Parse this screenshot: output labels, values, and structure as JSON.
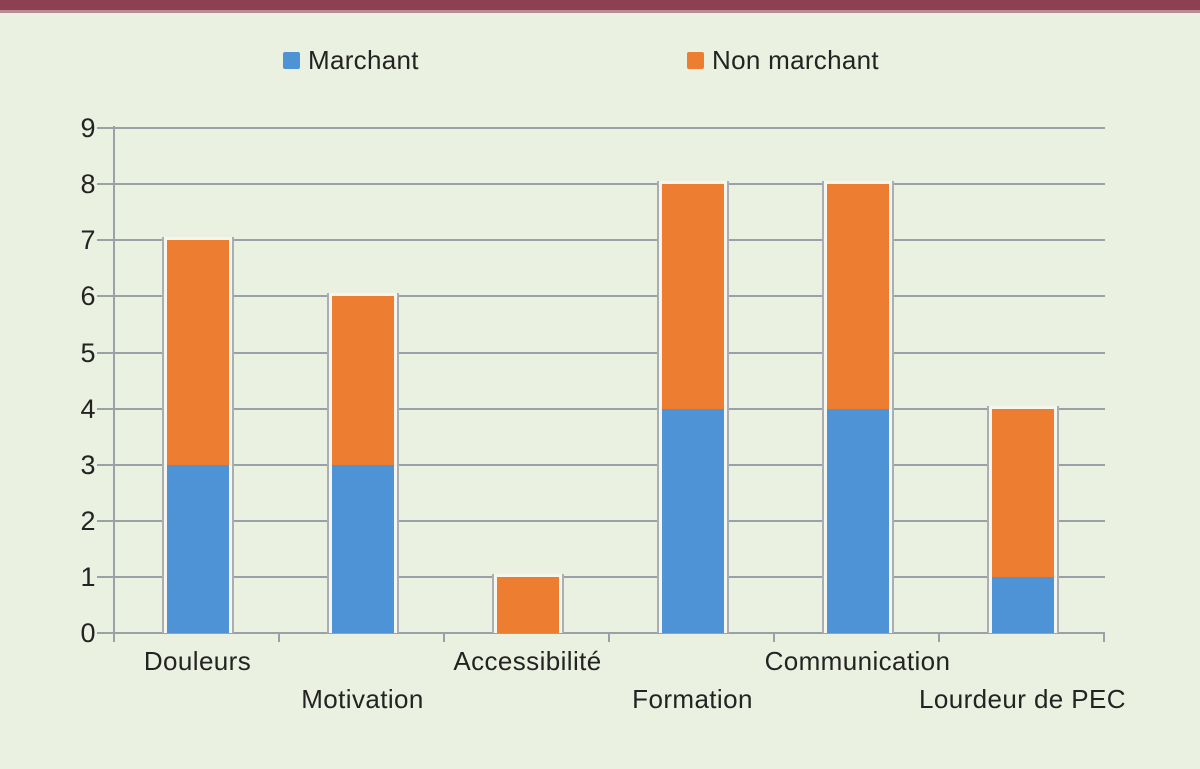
{
  "theme": {
    "background": "#EBF1E0",
    "top_bar_color": "#8E4053",
    "top_bar_accent_color": "#B98C96",
    "grid_color": "#9BA1A9",
    "axis_color": "#9BA1A9",
    "text_color": "#232323",
    "bar_edge_color": "#A9AEB5",
    "bar_gap_color": "#F7F6EE"
  },
  "legend": {
    "items": [
      {
        "label": "Marchant",
        "color": "#4E93D5"
      },
      {
        "label": "Non marchant",
        "color": "#ED7D31"
      }
    ]
  },
  "chart_data": {
    "type": "bar",
    "stacked": true,
    "title": "",
    "xlabel": "",
    "ylabel": "",
    "categories": [
      "Douleurs",
      "Motivation",
      "Accessibilité",
      "Formation",
      "Communication",
      "Lourdeur de PEC"
    ],
    "series": [
      {
        "name": "Marchant",
        "color": "#4E93D5",
        "values": [
          3,
          3,
          0,
          4,
          4,
          1
        ]
      },
      {
        "name": "Non marchant",
        "color": "#ED7D31",
        "values": [
          4,
          3,
          1,
          4,
          4,
          3
        ]
      }
    ],
    "totals": [
      7,
      6,
      1,
      8,
      8,
      4
    ],
    "ylim": [
      0,
      9
    ],
    "yticks": [
      0,
      1,
      2,
      3,
      4,
      5,
      6,
      7,
      8,
      9
    ],
    "grid": "horizontal",
    "legend_position": "top"
  }
}
